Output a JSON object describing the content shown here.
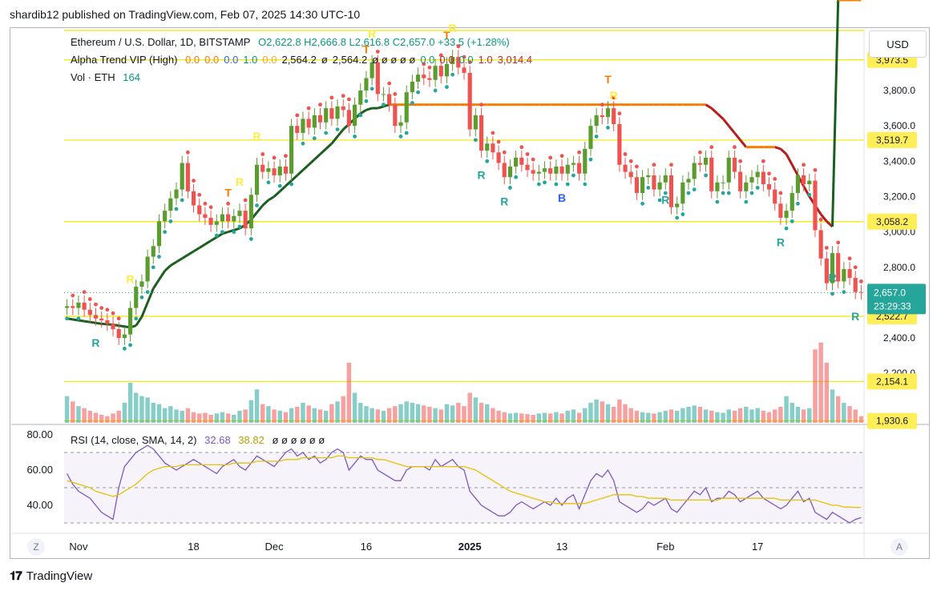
{
  "header": {
    "publisher": "shardib12 published on TradingView.com, Feb 07, 2025 14:30 UTC-10"
  },
  "legend": {
    "symbol": "Ethereum / U.S. Dollar, 1D, BITSTAMP",
    "ohlc": "O2,622.8  H2,666.8  L2,616.8  C2,657.0  +33.5 (+1.28%)",
    "indicator_name": "Alpha Trend VIP (High)",
    "indicator_values": [
      {
        "text": "0.0",
        "color": "#f57c00"
      },
      {
        "text": "0.0",
        "color": "#f57c00"
      },
      {
        "text": "0.0",
        "color": "#2962ff"
      },
      {
        "text": "1.0",
        "color": "#089981"
      },
      {
        "text": "0.0",
        "color": "#f9a825"
      },
      {
        "text": "2,564.2",
        "color": "#131722"
      },
      {
        "text": "ø",
        "color": "#131722"
      },
      {
        "text": "2,564.2",
        "color": "#131722"
      },
      {
        "text": "ø ø ø ø ø",
        "color": "#131722"
      },
      {
        "text": "0.0",
        "color": "#089981"
      },
      {
        "text": "0.0",
        "color": "#c62828"
      },
      {
        "text": "0.0",
        "color": "#089981"
      },
      {
        "text": "1.0",
        "color": "#c62828"
      },
      {
        "text": "3,014.4",
        "color": "#c62828"
      }
    ],
    "vol_label": "Vol · ETH",
    "vol_value": "164",
    "rsi_label": "RSI (14, close, SMA, 14, 2)",
    "rsi_value": "32.68",
    "rsi_sma_value": "38.82",
    "rsi_tail": "ø ø ø ø ø ø"
  },
  "currency_button": "USD",
  "footer": {
    "brand": "TradingView"
  },
  "corner_buttons": [
    "Z",
    "A"
  ],
  "colors": {
    "bull": "#26a69a",
    "bear": "#ef5350",
    "bull_dark": "#5b9c2f",
    "trend_up": "#1b5e20",
    "trend_down": "#b71c1c",
    "trend_flat": "#f57c00",
    "hline": "#f2e600",
    "rsi_line": "#7e57c2",
    "rsi_sma": "#e6c200"
  },
  "chart_data": {
    "type": "candlestick",
    "title": "Ethereum / U.S. Dollar, 1D, BITSTAMP",
    "x_tick_labels": [
      "Nov",
      "18",
      "Dec",
      "16",
      "2025",
      "13",
      "Feb",
      "17"
    ],
    "y_tick_labels": [
      "3,800.0",
      "3,600.0",
      "3,400.0",
      "3,200.0",
      "3,000.0",
      "2,800.0",
      "2,400.0",
      "2,200.0"
    ],
    "y_ticks": [
      3800,
      3600,
      3400,
      3200,
      3000,
      2800,
      2400,
      2200
    ],
    "ylim": [
      1920,
      4140
    ],
    "price_labels": [
      {
        "text": "3,973.5",
        "value": 3973.5
      },
      {
        "text": "3,519.7",
        "value": 3519.7
      },
      {
        "text": "3,058.2",
        "value": 3058.2
      },
      {
        "text": "2,522.7",
        "value": 2522.7
      },
      {
        "text": "2,154.1",
        "value": 2154.1
      },
      {
        "text": "1,930.6",
        "value": 1930.6
      }
    ],
    "last_price": {
      "text": "2,657.0",
      "countdown": "23:29:33",
      "value": 2657.0
    },
    "horizontal_levels": [
      4140,
      3973.5,
      3519.7,
      3058.2,
      2522.7,
      2154.1,
      1930.6
    ],
    "close": [
      2580,
      2570,
      2600,
      2560,
      2530,
      2510,
      2500,
      2480,
      2450,
      2400,
      2420,
      2570,
      2690,
      2720,
      2860,
      2920,
      3060,
      3120,
      3190,
      3240,
      3390,
      3230,
      3150,
      3100,
      3080,
      3040,
      3060,
      3100,
      3060,
      3090,
      3120,
      3020,
      3210,
      3380,
      3340,
      3360,
      3320,
      3370,
      3330,
      3600,
      3560,
      3640,
      3590,
      3660,
      3620,
      3700,
      3640,
      3710,
      3690,
      3600,
      3720,
      3800,
      3870,
      3960,
      3780,
      3780,
      3720,
      3600,
      3620,
      3790,
      3850,
      3890,
      3870,
      3860,
      3940,
      3880,
      3950,
      3990,
      3930,
      3900,
      3580,
      3660,
      3460,
      3500,
      3450,
      3390,
      3310,
      3370,
      3420,
      3380,
      3350,
      3330,
      3340,
      3360,
      3330,
      3370,
      3330,
      3380,
      3390,
      3330,
      3470,
      3600,
      3660,
      3650,
      3700,
      3610,
      3380,
      3340,
      3310,
      3220,
      3310,
      3320,
      3240,
      3280,
      3320,
      3140,
      3160,
      3280,
      3300,
      3390,
      3380,
      3420,
      3230,
      3280,
      3280,
      3420,
      3340,
      3230,
      3280,
      3310,
      3340,
      3270,
      3240,
      3160,
      3080,
      3120,
      3220,
      3320,
      3270,
      3290,
      3010,
      2850,
      2710,
      2880,
      2720,
      2790,
      2740,
      2660,
      2657
    ],
    "volume": [
      40,
      32,
      25,
      22,
      18,
      15,
      12,
      10,
      14,
      18,
      30,
      60,
      45,
      40,
      38,
      30,
      28,
      22,
      25,
      20,
      18,
      22,
      16,
      14,
      15,
      12,
      14,
      16,
      14,
      12,
      18,
      20,
      34,
      50,
      28,
      25,
      20,
      18,
      16,
      22,
      24,
      30,
      26,
      22,
      20,
      18,
      28,
      32,
      40,
      90,
      45,
      30,
      25,
      22,
      20,
      18,
      22,
      25,
      28,
      32,
      30,
      28,
      26,
      24,
      22,
      20,
      28,
      26,
      30,
      25,
      45,
      38,
      30,
      28,
      22,
      18,
      16,
      14,
      15,
      14,
      13,
      12,
      14,
      15,
      14,
      16,
      14,
      18,
      20,
      15,
      22,
      30,
      35,
      32,
      28,
      24,
      35,
      28,
      22,
      18,
      16,
      15,
      14,
      16,
      18,
      20,
      18,
      22,
      24,
      26,
      24,
      20,
      18,
      16,
      15,
      20,
      18,
      22,
      24,
      20,
      22,
      18,
      16,
      20,
      24,
      40,
      30,
      24,
      20,
      22,
      110,
      120,
      90,
      50,
      40,
      30,
      25,
      20,
      10
    ],
    "trend_line": [
      2510,
      2505,
      2500,
      2495,
      2490,
      2485,
      2480,
      2478,
      2475,
      2470,
      2465,
      2460,
      2470,
      2520,
      2600,
      2680,
      2730,
      2780,
      2810,
      2830,
      2850,
      2870,
      2890,
      2910,
      2930,
      2950,
      2970,
      2990,
      3000,
      3010,
      3020,
      3040,
      3070,
      3110,
      3150,
      3180,
      3200,
      3230,
      3260,
      3290,
      3320,
      3350,
      3380,
      3410,
      3440,
      3470,
      3500,
      3540,
      3580,
      3610,
      3640,
      3670,
      3690,
      3700,
      3700,
      3710,
      3720,
      3720,
      3720,
      3720,
      3720,
      3720,
      3720,
      3720,
      3720,
      3720,
      3720,
      3720,
      3720,
      3720,
      3720,
      3720,
      3720,
      3720,
      3720,
      3720,
      3720,
      3720,
      3720,
      3720,
      3720,
      3720,
      3720,
      3720,
      3720,
      3720,
      3720,
      3720,
      3720,
      3720,
      3720,
      3720,
      3720,
      3720,
      3720,
      3720,
      3720,
      3720,
      3720,
      3720,
      3720,
      3720,
      3720,
      3720,
      3720,
      3720,
      3720,
      3720,
      3720,
      3720,
      3720,
      3720,
      3700,
      3670,
      3640,
      3600,
      3560,
      3520,
      3480,
      3480,
      3480,
      3480,
      3480,
      3480,
      3470,
      3440,
      3380,
      3320,
      3260,
      3200,
      3150,
      3100,
      3060,
      3030
    ],
    "rsi": [
      58,
      52,
      48,
      46,
      44,
      40,
      36,
      34,
      32,
      50,
      62,
      66,
      70,
      72,
      74,
      72,
      68,
      64,
      62,
      60,
      62,
      64,
      66,
      64,
      62,
      60,
      58,
      62,
      64,
      66,
      62,
      60,
      64,
      68,
      66,
      64,
      62,
      66,
      70,
      72,
      68,
      70,
      66,
      68,
      64,
      66,
      70,
      72,
      70,
      60,
      64,
      68,
      66,
      66,
      60,
      58,
      56,
      54,
      54,
      60,
      62,
      62,
      62,
      60,
      66,
      62,
      64,
      66,
      62,
      60,
      48,
      44,
      40,
      38,
      36,
      34,
      34,
      36,
      40,
      42,
      40,
      38,
      40,
      42,
      40,
      44,
      40,
      44,
      46,
      38,
      46,
      54,
      58,
      56,
      60,
      54,
      42,
      40,
      38,
      36,
      38,
      42,
      40,
      42,
      44,
      38,
      36,
      40,
      44,
      48,
      46,
      50,
      42,
      44,
      44,
      48,
      46,
      42,
      44,
      46,
      48,
      44,
      42,
      40,
      38,
      40,
      44,
      48,
      42,
      44,
      36,
      34,
      32,
      36,
      34,
      32,
      30,
      32,
      33
    ],
    "rsi_sma": [
      54,
      53,
      52,
      51,
      50,
      48,
      47,
      46,
      45,
      46,
      48,
      50,
      52,
      55,
      58,
      60,
      61,
      62,
      62,
      62,
      63,
      63,
      63,
      63,
      63,
      63,
      63,
      63,
      63,
      64,
      64,
      64,
      64,
      65,
      65,
      65,
      65,
      65,
      66,
      66,
      66,
      67,
      67,
      67,
      67,
      67,
      67,
      68,
      68,
      67,
      67,
      67,
      67,
      67,
      66,
      66,
      65,
      64,
      63,
      62,
      62,
      62,
      62,
      62,
      62,
      62,
      62,
      62,
      62,
      62,
      61,
      60,
      58,
      56,
      54,
      52,
      50,
      48,
      47,
      46,
      45,
      44,
      43,
      42,
      42,
      41,
      41,
      41,
      41,
      41,
      41,
      42,
      43,
      44,
      45,
      46,
      46,
      46,
      46,
      45,
      45,
      44,
      44,
      44,
      44,
      43,
      43,
      43,
      43,
      43,
      43,
      43,
      43,
      43,
      44,
      44,
      44,
      44,
      44,
      44,
      44,
      44,
      44,
      44,
      43,
      43,
      43,
      43,
      43,
      43,
      43,
      42,
      41,
      40,
      40,
      39,
      39,
      38.8,
      38.8
    ],
    "rsi_ylim": [
      25,
      85
    ],
    "rsi_ticks": [
      80,
      60,
      40
    ],
    "rsi_tick_labels": [
      "80.00",
      "60.00",
      "40.00"
    ],
    "signals": [
      {
        "i": 5,
        "text": "R",
        "color": "#26a69a",
        "pos": "below"
      },
      {
        "i": 11,
        "text": "R",
        "color": "#ffeb3b",
        "pos": "above"
      },
      {
        "i": 28,
        "text": "T",
        "color": "#f57c00",
        "pos": "above"
      },
      {
        "i": 30,
        "text": "R",
        "color": "#ffeb3b",
        "pos": "above"
      },
      {
        "i": 33,
        "text": "R",
        "color": "#ffeb3b",
        "pos": "above"
      },
      {
        "i": 52,
        "text": "T",
        "color": "#f57c00",
        "pos": "above"
      },
      {
        "i": 53,
        "text": "R",
        "color": "#ffeb3b",
        "pos": "above"
      },
      {
        "i": 66,
        "text": "T",
        "color": "#f57c00",
        "pos": "above"
      },
      {
        "i": 67,
        "text": "R",
        "color": "#ffeb3b",
        "pos": "above"
      },
      {
        "i": 72,
        "text": "R",
        "color": "#26a69a",
        "pos": "below"
      },
      {
        "i": 76,
        "text": "R",
        "color": "#26a69a",
        "pos": "below"
      },
      {
        "i": 86,
        "text": "B",
        "color": "#2962ff",
        "pos": "below"
      },
      {
        "i": 94,
        "text": "T",
        "color": "#f57c00",
        "pos": "above"
      },
      {
        "i": 95,
        "text": "R",
        "color": "#ffeb3b",
        "pos": "above"
      },
      {
        "i": 104,
        "text": "R",
        "color": "#26a69a",
        "pos": "below"
      },
      {
        "i": 124,
        "text": "R",
        "color": "#26a69a",
        "pos": "below"
      },
      {
        "i": 133,
        "text": "R",
        "color": "#26a69a",
        "pos": "below"
      },
      {
        "i": 137,
        "text": "R",
        "color": "#26a69a",
        "pos": "below"
      }
    ]
  }
}
